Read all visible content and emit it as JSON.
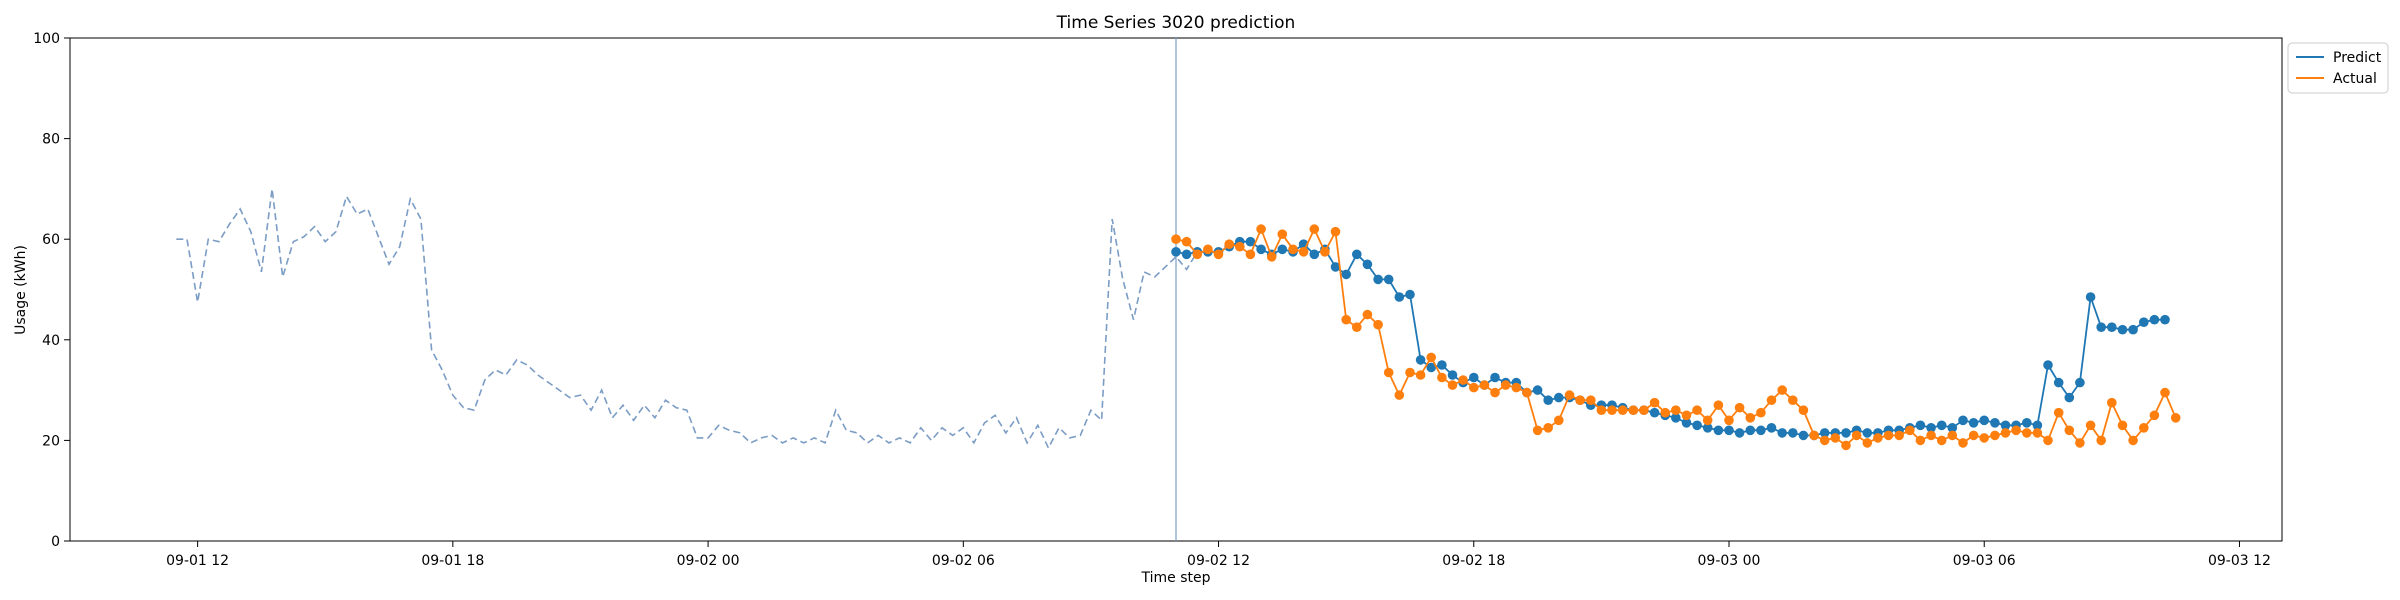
{
  "chart_data": {
    "type": "line",
    "title": "Time Series 3020 prediction",
    "xlabel": "Time step",
    "ylabel": "Usage (kWh)",
    "ylim": [
      0,
      100
    ],
    "yticks": [
      0,
      20,
      40,
      60,
      80,
      100
    ],
    "xlim": [
      "2021-09-01 09:00",
      "2021-09-03 13:00"
    ],
    "xticks": [
      {
        "at": "2021-09-01 12:00",
        "label": "09-01 12"
      },
      {
        "at": "2021-09-01 18:00",
        "label": "09-01 18"
      },
      {
        "at": "2021-09-02 00:00",
        "label": "09-02 00"
      },
      {
        "at": "2021-09-02 06:00",
        "label": "09-02 06"
      },
      {
        "at": "2021-09-02 12:00",
        "label": "09-02 12"
      },
      {
        "at": "2021-09-02 18:00",
        "label": "09-02 18"
      },
      {
        "at": "2021-09-03 00:00",
        "label": "09-03 00"
      },
      {
        "at": "2021-09-03 06:00",
        "label": "09-03 06"
      },
      {
        "at": "2021-09-03 12:00",
        "label": "09-03 12"
      }
    ],
    "grid": false,
    "legend_position": "upper-right-outside",
    "forecast_start": "2021-09-02 11:00",
    "series": [
      {
        "role": "history",
        "style": "dashed",
        "color": "#7b9cc4",
        "start": "2021-09-01 11:30",
        "interval_minutes": 15,
        "values": [
          60.0,
          60.0,
          47.5,
          60.0,
          59.5,
          63.0,
          66.0,
          61.5,
          53.5,
          70.0,
          52.5,
          59.5,
          60.5,
          62.5,
          59.5,
          61.5,
          68.5,
          65.0,
          66.0,
          60.5,
          55.0,
          58.5,
          68.0,
          64.0,
          38.0,
          34.0,
          29.0,
          26.5,
          26.0,
          32.0,
          34.0,
          33.0,
          36.0,
          35.0,
          33.0,
          31.5,
          30.0,
          28.5,
          29.0,
          26.0,
          30.0,
          24.5,
          27.0,
          24.0,
          27.0,
          24.5,
          28.0,
          26.5,
          26.0,
          20.5,
          20.5,
          23.0,
          22.0,
          21.5,
          19.5,
          20.5,
          21.0,
          19.5,
          20.5,
          19.5,
          20.5,
          19.5,
          26.0,
          22.0,
          21.5,
          19.5,
          21.0,
          19.5,
          20.5,
          19.5,
          22.5,
          20.0,
          22.5,
          21.0,
          22.5,
          19.5,
          23.5,
          25.0,
          21.5,
          24.5,
          19.5,
          23.0,
          18.5,
          22.5,
          20.5,
          21.0,
          26.0,
          24.0,
          64.0,
          52.0,
          44.0,
          53.5,
          52.5,
          54.5,
          56.5,
          54.0,
          57.5
        ]
      },
      {
        "name": "Predict",
        "role": "forecast",
        "style": "solid-markers",
        "color": "#1f77b4",
        "start": "2021-09-02 11:00",
        "interval_minutes": 15,
        "values": [
          57.5,
          57.0,
          57.5,
          57.5,
          57.5,
          58.5,
          59.5,
          59.5,
          58.0,
          57.0,
          58.0,
          57.5,
          59.0,
          57.0,
          58.0,
          54.5,
          53.0,
          57.0,
          55.0,
          52.0,
          52.0,
          48.5,
          49.0,
          36.0,
          34.5,
          35.0,
          33.0,
          31.5,
          32.5,
          31.0,
          32.5,
          31.5,
          31.5,
          29.5,
          30.0,
          28.0,
          28.5,
          28.5,
          28.0,
          27.0,
          27.0,
          27.0,
          26.5,
          26.0,
          26.0,
          25.5,
          25.0,
          24.5,
          23.5,
          23.0,
          22.5,
          22.0,
          22.0,
          21.5,
          22.0,
          22.0,
          22.5,
          21.5,
          21.5,
          21.0,
          21.0,
          21.5,
          21.5,
          21.5,
          22.0,
          21.5,
          21.5,
          22.0,
          22.0,
          22.5,
          23.0,
          22.5,
          23.0,
          22.5,
          24.0,
          23.5,
          24.0,
          23.5,
          23.0,
          23.0,
          23.5,
          23.0,
          35.0,
          31.5,
          28.5,
          31.5,
          48.5,
          42.5,
          42.5,
          42.0,
          42.0,
          43.5,
          44.0,
          44.0
        ]
      },
      {
        "name": "Actual",
        "role": "actual",
        "style": "solid-markers",
        "color": "#ff7f0e",
        "start": "2021-09-02 11:00",
        "interval_minutes": 15,
        "values": [
          60.0,
          59.5,
          57.0,
          58.0,
          57.0,
          59.0,
          58.5,
          57.0,
          62.0,
          56.5,
          61.0,
          58.0,
          57.5,
          62.0,
          57.5,
          61.5,
          44.0,
          42.5,
          45.0,
          43.0,
          33.5,
          29.0,
          33.5,
          33.0,
          36.5,
          32.5,
          31.0,
          32.0,
          30.5,
          31.0,
          29.5,
          31.0,
          30.5,
          29.5,
          22.0,
          22.5,
          24.0,
          29.0,
          28.0,
          28.0,
          26.0,
          26.0,
          26.0,
          26.0,
          26.0,
          27.5,
          25.5,
          26.0,
          25.0,
          26.0,
          24.0,
          27.0,
          24.0,
          26.5,
          24.5,
          25.5,
          28.0,
          30.0,
          28.0,
          26.0,
          21.0,
          20.0,
          20.5,
          19.0,
          21.0,
          19.5,
          20.5,
          21.0,
          21.0,
          22.0,
          20.0,
          21.0,
          20.0,
          21.0,
          19.5,
          21.0,
          20.5,
          21.0,
          21.5,
          22.0,
          21.5,
          21.5,
          20.0,
          25.5,
          22.0,
          19.5,
          23.0,
          20.0,
          27.5,
          23.0,
          20.0,
          22.5,
          25.0,
          29.5,
          24.5
        ]
      }
    ]
  }
}
